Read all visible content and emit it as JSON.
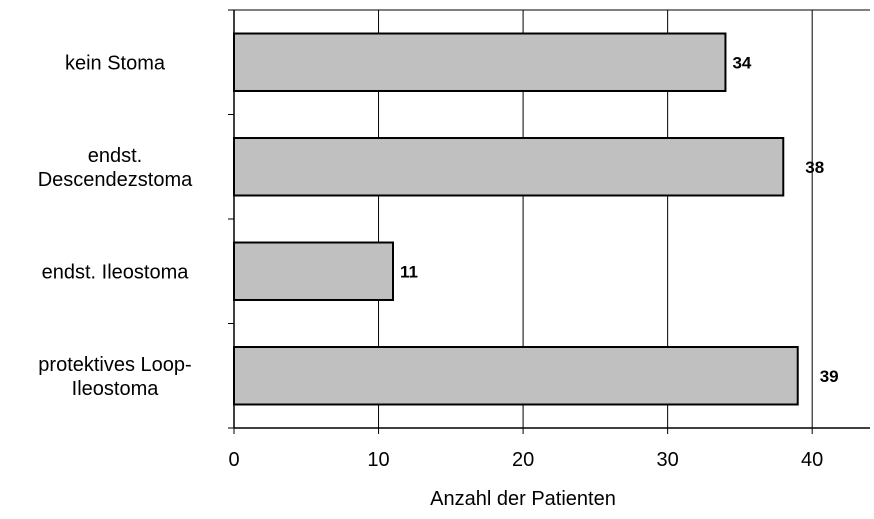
{
  "chart_data": {
    "type": "bar",
    "orientation": "horizontal",
    "categories": [
      [
        "kein Stoma"
      ],
      [
        "endst.",
        "Descendezstoma"
      ],
      [
        "endst. Ileostoma"
      ],
      [
        "protektives Loop-",
        "Ileostoma"
      ]
    ],
    "values": [
      34,
      38,
      11,
      39
    ],
    "data_labels": [
      "34",
      "38",
      "11",
      "39"
    ],
    "xlabel": "Anzahl der Patienten",
    "ylabel": "",
    "xlim": [
      0,
      44
    ],
    "xticks": [
      0,
      10,
      20,
      30,
      40
    ],
    "xtick_labels": [
      "0",
      "10",
      "20",
      "30",
      "40"
    ],
    "grid": "vertical",
    "colors": {
      "bar_fill": "#c0c0c0",
      "bar_stroke": "#000000",
      "grid": "#000000"
    }
  }
}
